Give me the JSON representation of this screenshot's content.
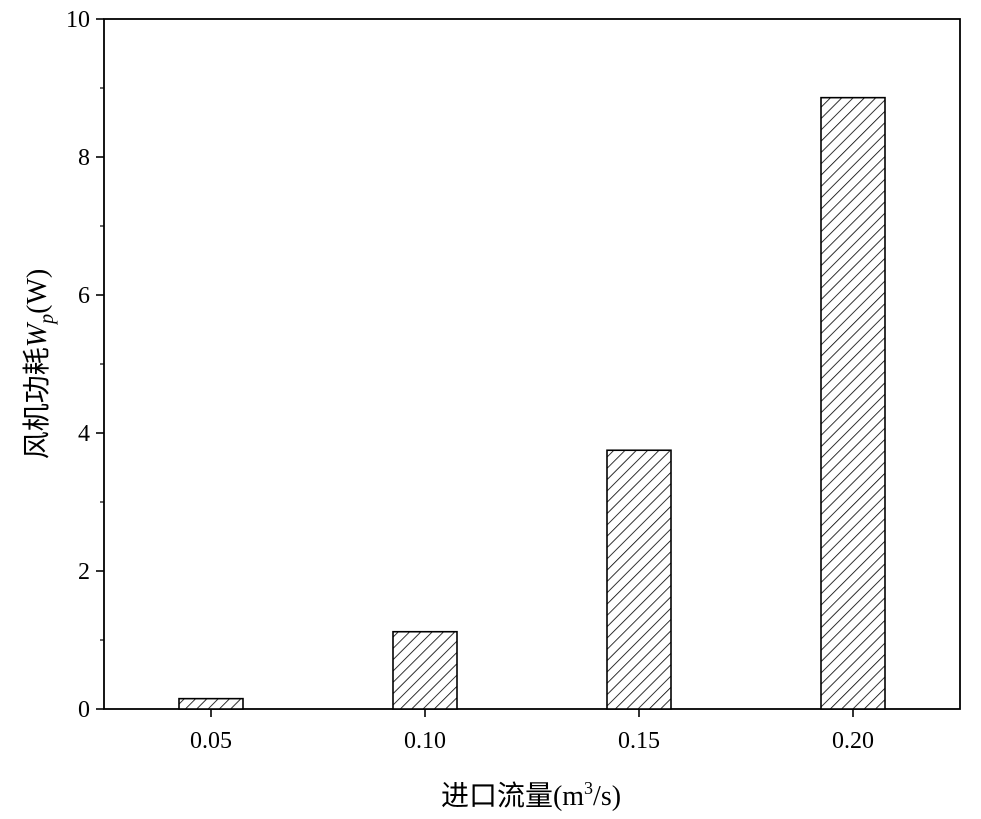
{
  "chart_data": {
    "type": "bar",
    "categories": [
      "0.05",
      "0.10",
      "0.15",
      "0.20"
    ],
    "values": [
      0.15,
      1.12,
      3.75,
      8.86
    ],
    "xlabel_main": "进口流量(m",
    "xlabel_sup": "3",
    "xlabel_end": "/s)",
    "ylabel_main": "风机功耗",
    "ylabel_var": "W",
    "ylabel_sub": "p",
    "ylabel_unit": "(W)",
    "ylim": [
      0,
      10
    ],
    "yticks": [
      "0",
      "2",
      "4",
      "6",
      "8",
      "10"
    ],
    "grid": false,
    "bar_fill": "hatched",
    "colors": {
      "stroke": "#000000",
      "background": "#ffffff"
    }
  }
}
